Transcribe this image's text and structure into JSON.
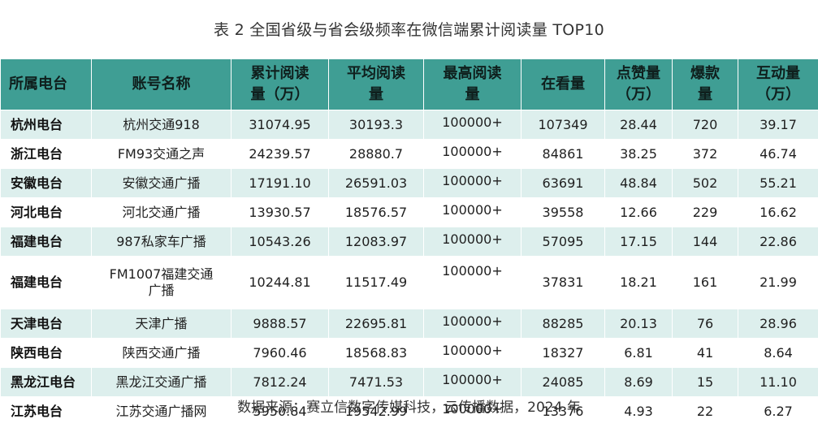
{
  "title": "表 2  全国省级与省会级频率在微信端累计阅读量 TOP10",
  "headers": [
    [
      "所属电台"
    ],
    [
      "账号名称"
    ],
    [
      "累计阅读",
      "量（万）"
    ],
    [
      "平均阅读",
      "量"
    ],
    [
      "最高阅读",
      "量"
    ],
    [
      "在看量"
    ],
    [
      "点赞量",
      "（万）"
    ],
    [
      "爆款",
      "量"
    ],
    [
      "互动量",
      "（万）"
    ]
  ],
  "rows": [
    {
      "station": "杭州电台",
      "account": "杭州交通918",
      "total": "31074.95",
      "avg": "30193.3",
      "max": "100000+",
      "watching": "107349",
      "likes": "28.44",
      "hits": "720",
      "interact": "39.17"
    },
    {
      "station": "浙江电台",
      "account": "FM93交通之声",
      "total": "24239.57",
      "avg": "28880.7",
      "max": "100000+",
      "watching": "84861",
      "likes": "38.25",
      "hits": "372",
      "interact": "46.74"
    },
    {
      "station": "安徽电台",
      "account": "安徽交通广播",
      "total": "17191.10",
      "avg": "26591.03",
      "max": "100000+",
      "watching": "63691",
      "likes": "48.84",
      "hits": "502",
      "interact": "55.21"
    },
    {
      "station": "河北电台",
      "account": "河北交通广播",
      "total": "13930.57",
      "avg": "18576.57",
      "max": "100000+",
      "watching": "39558",
      "likes": "12.66",
      "hits": "229",
      "interact": "16.62"
    },
    {
      "station": "福建电台",
      "account": "987私家车广播",
      "total": "10543.26",
      "avg": "12083.97",
      "max": "100000+",
      "watching": "57095",
      "likes": "17.15",
      "hits": "144",
      "interact": "22.86"
    },
    {
      "station": "福建电台",
      "account": "FM1007福建交通\n广播",
      "total": "10244.81",
      "avg": "11517.49",
      "max": "100000+",
      "watching": "37831",
      "likes": "18.21",
      "hits": "161",
      "interact": "21.99"
    },
    {
      "station": "天津电台",
      "account": "天津广播",
      "total": "9888.57",
      "avg": "22695.81",
      "max": "100000+",
      "watching": "88285",
      "likes": "20.13",
      "hits": "76",
      "interact": "28.96"
    },
    {
      "station": "陕西电台",
      "account": "陕西交通广播",
      "total": "7960.46",
      "avg": "18568.83",
      "max": "100000+",
      "watching": "18327",
      "likes": "6.81",
      "hits": "41",
      "interact": "8.64"
    },
    {
      "station": "黑龙江电台",
      "account": "黑龙江交通广播",
      "total": "7812.24",
      "avg": "7471.53",
      "max": "100000+",
      "watching": "24085",
      "likes": "8.69",
      "hits": "15",
      "interact": "11.10"
    },
    {
      "station": "江苏电台",
      "account": "江苏交通广播网",
      "total": "5950.84",
      "avg": "19542.99",
      "max": "100000+",
      "watching": "13376",
      "likes": "4.93",
      "hits": "22",
      "interact": "6.27"
    }
  ],
  "source": "数据来源：赛立信数字传媒科技，云传播数据，2024 年",
  "colors": {
    "header_bg": "#3f9e94",
    "row_stripe": "#ddefed",
    "row_plain": "#ffffff"
  }
}
